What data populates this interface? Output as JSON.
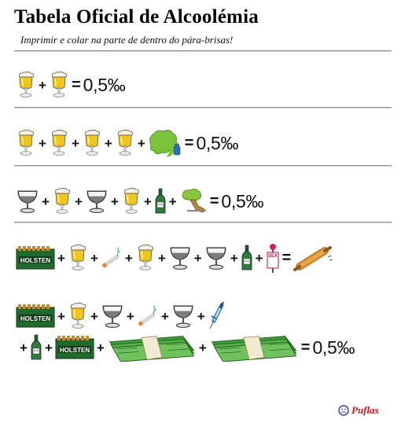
{
  "title": "Tabela Oficial de Alcoolémia",
  "subtitle": "Imprimir e colar na parte de dentro do pára-brisas!",
  "operators": {
    "plus": "+",
    "equals": "="
  },
  "result_value": "0,5‰",
  "crate_label": "HOLSTEN",
  "sex_sign_label": "SEX",
  "brand": "Puflas",
  "rows": [
    {
      "row": 1,
      "terms": [
        "beer-mug-icon",
        "beer-mug-icon"
      ],
      "result": "0,5‰"
    },
    {
      "row": 2,
      "terms": [
        "beer-mug-icon",
        "beer-mug-icon",
        "beer-mug-icon",
        "beer-mug-icon",
        "vomiting-person-icon"
      ],
      "result": "0,5‰"
    },
    {
      "row": 3,
      "terms": [
        "wine-glass-icon",
        "beer-mug-icon",
        "wine-glass-icon",
        "beer-mug-icon",
        "wine-bottle-icon",
        "passed-out-person-icon"
      ],
      "result": "0,5‰"
    },
    {
      "row": 4,
      "terms": [
        "beer-crate-icon",
        "beer-mug-icon",
        "cigarette-icon",
        "beer-mug-icon",
        "wine-glass-icon",
        "wine-glass-icon",
        "wine-bottle-icon",
        "sex-sign-icon"
      ],
      "result": "rolling-pin-icon"
    },
    {
      "row": 5,
      "terms": [
        "beer-crate-icon",
        "beer-mug-icon",
        "wine-glass-icon",
        "cigarette-icon",
        "wine-glass-icon",
        "syringe-icon",
        "wine-bottle-icon",
        "beer-crate-icon",
        "money-stack-icon",
        "money-stack-icon"
      ],
      "result": "0,5‰"
    }
  ],
  "colors": {
    "beer": "#f3c51a",
    "foam": "#f7f3df",
    "bottle": "#2f7d3a",
    "crate": "#1f6b2c",
    "money": "#3f9e3a",
    "vomit": "#7cc23b",
    "brand": "#d01818"
  }
}
